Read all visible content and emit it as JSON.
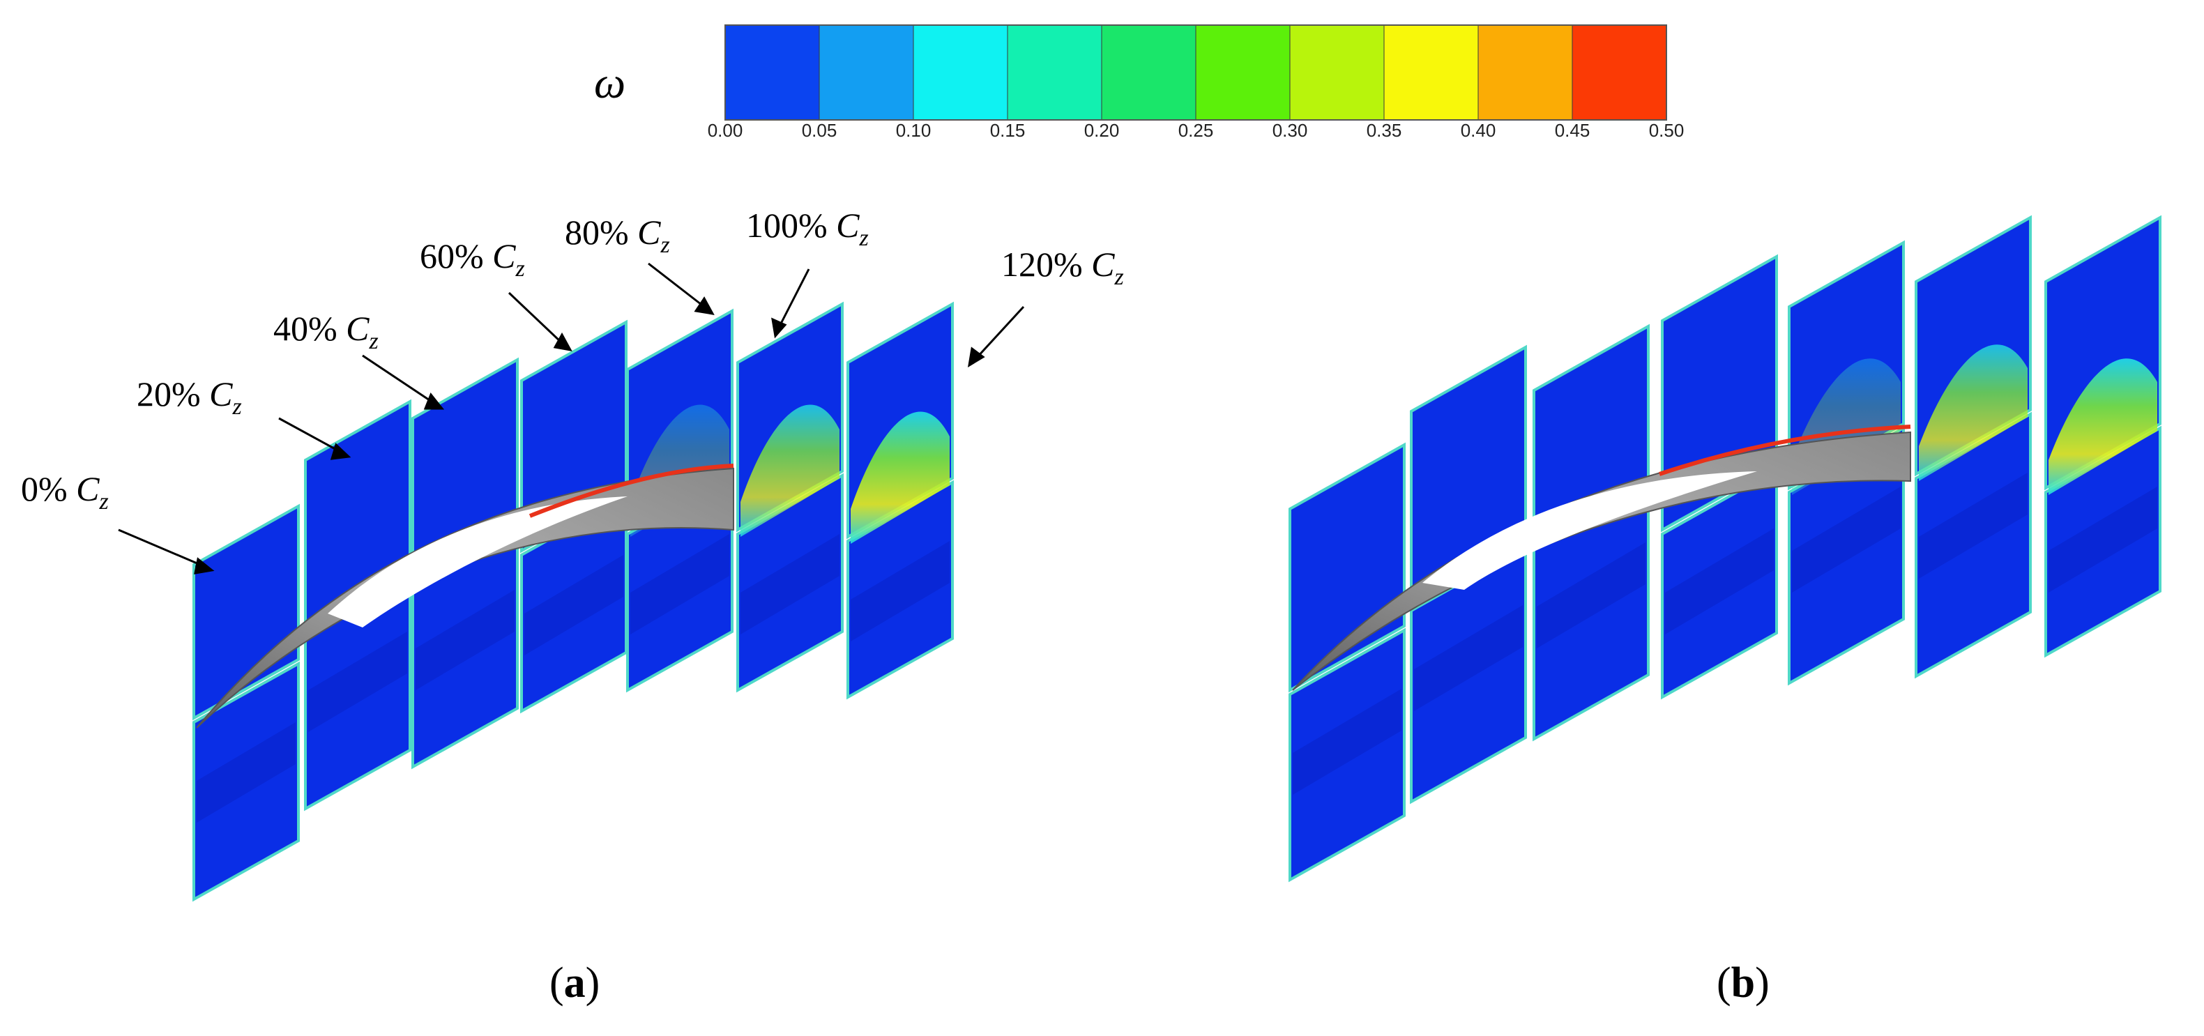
{
  "colorbar": {
    "symbol": "ω",
    "ticks": [
      "0.00",
      "0.05",
      "0.10",
      "0.15",
      "0.20",
      "0.25",
      "0.30",
      "0.35",
      "0.40",
      "0.45",
      "0.50"
    ],
    "colors": [
      "#0b44f0",
      "#139ef2",
      "#0ff2f2",
      "#12f0b0",
      "#1ae66a",
      "#5cf00a",
      "#b8f40c",
      "#f8f80a",
      "#fbac05",
      "#fb3a05"
    ]
  },
  "sections": [
    {
      "pct": "0%",
      "c": "C",
      "sub": "z"
    },
    {
      "pct": "20%",
      "c": "C",
      "sub": "z"
    },
    {
      "pct": "40%",
      "c": "C",
      "sub": "z"
    },
    {
      "pct": "60%",
      "c": "C",
      "sub": "z"
    },
    {
      "pct": "80%",
      "c": "C",
      "sub": "z"
    },
    {
      "pct": "100%",
      "c": "C",
      "sub": "z"
    },
    {
      "pct": "120%",
      "c": "C",
      "sub": "z"
    }
  ],
  "panels": {
    "a": {
      "open": "(",
      "letter": "a",
      "close": ")"
    },
    "b": {
      "open": "(",
      "letter": "b",
      "close": ")"
    }
  },
  "style": {
    "plane_blue": "#0a2ee6",
    "plane_edge": "#4fd8c8",
    "blade_gray": "#9a9a9a",
    "wake_yellow": "#e8f01a",
    "wake_orange": "#f6a414",
    "hot_red": "#e8321a",
    "wake_green": "#70e040"
  }
}
